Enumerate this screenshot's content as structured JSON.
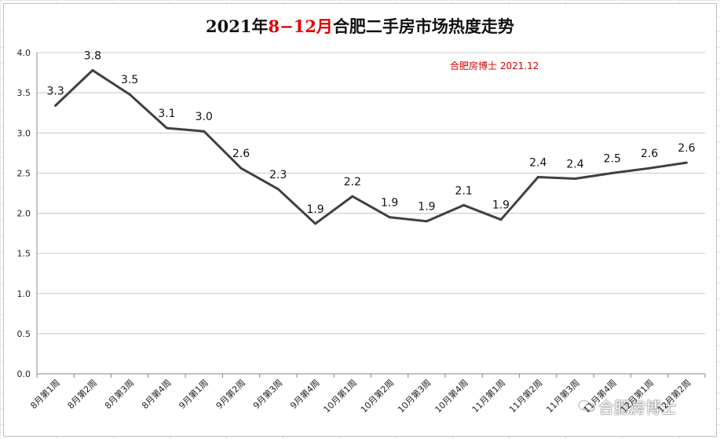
{
  "title": {
    "prefix": "2021年",
    "highlight": "8−12月",
    "suffix": "合肥二手房市场热度走势"
  },
  "subtitle": "合肥房博士 2021.12",
  "watermark": "合肥房博士",
  "colors": {
    "line": "#404040",
    "title_highlight": "#e00000",
    "subtitle": "#d00000",
    "grid": "#c8c8c8"
  },
  "chart_data": {
    "type": "line",
    "title": "2021年8−12月合肥二手房市场热度走势",
    "categories": [
      "8月第1周",
      "8月第2周",
      "8月第3周",
      "8月第4周",
      "9月第1周",
      "9月第2周",
      "9月第3周",
      "9月第4周",
      "10月第1周",
      "10月第2周",
      "10月第3周",
      "10月第4周",
      "11月第1周",
      "11月第2周",
      "11月第3周",
      "11月第4周",
      "12月第1周",
      "12月第2周"
    ],
    "series": [
      {
        "values": [
          3.34,
          3.78,
          3.48,
          3.06,
          3.02,
          2.56,
          2.3,
          1.87,
          2.21,
          1.95,
          1.9,
          2.1,
          1.92,
          2.45,
          2.43,
          2.5,
          2.56,
          2.63
        ]
      }
    ],
    "data_labels": [
      "3.3",
      "3.8",
      "3.5",
      "3.1",
      "3.0",
      "2.6",
      "2.3",
      "1.9",
      "2.2",
      "1.9",
      "1.9",
      "2.1",
      "1.9",
      "2.4",
      "2.4",
      "2.5",
      "2.6",
      "2.6"
    ],
    "ylim": [
      0,
      4.0
    ],
    "yticks": [
      "0.0",
      "0.5",
      "1.0",
      "1.5",
      "2.0",
      "2.5",
      "3.0",
      "3.5",
      "4.0"
    ],
    "xlabel": "",
    "ylabel": "",
    "grid": true,
    "legend": "none"
  }
}
